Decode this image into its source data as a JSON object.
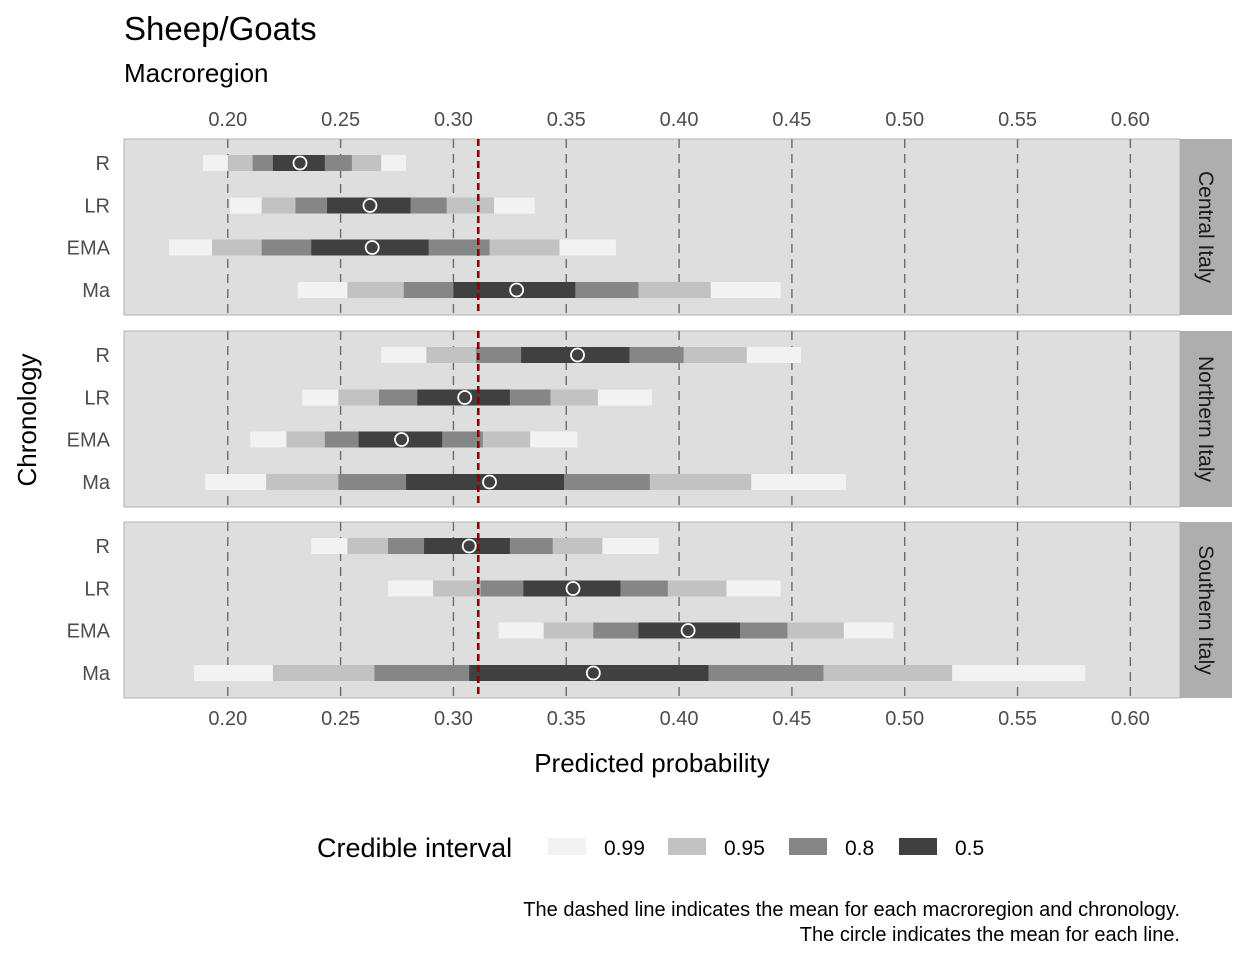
{
  "chart_data": {
    "type": "interval",
    "title": "Sheep/Goats",
    "subtitle": "Macroregion",
    "xlabel": "Predicted probability",
    "ylabel": "Chronology",
    "xlim": [
      0.154,
      0.622
    ],
    "x_ticks": [
      "0.20",
      "0.25",
      "0.30",
      "0.35",
      "0.40",
      "0.45",
      "0.50",
      "0.55",
      "0.60"
    ],
    "x_tick_values": [
      0.2,
      0.25,
      0.3,
      0.35,
      0.4,
      0.45,
      0.5,
      0.55,
      0.6
    ],
    "categories": [
      "R",
      "LR",
      "EMA",
      "Ma"
    ],
    "reference_line": 0.311,
    "legend": {
      "title": "Credible interval",
      "position": "bottom",
      "levels": [
        {
          "label": "0.99",
          "color": "#f2f2f2"
        },
        {
          "label": "0.95",
          "color": "#c2c2c2"
        },
        {
          "label": "0.8",
          "color": "#868686"
        },
        {
          "label": "0.5",
          "color": "#404040"
        }
      ]
    },
    "panels": [
      {
        "name": "Central Italy",
        "rows": [
          {
            "label": "R",
            "mean": 0.232,
            "i99": [
              0.189,
              0.279
            ],
            "i95": [
              0.2,
              0.268
            ],
            "i80": [
              0.211,
              0.255
            ],
            "i50": [
              0.22,
              0.243
            ]
          },
          {
            "label": "LR",
            "mean": 0.263,
            "i99": [
              0.201,
              0.336
            ],
            "i95": [
              0.215,
              0.318
            ],
            "i80": [
              0.23,
              0.297
            ],
            "i50": [
              0.244,
              0.281
            ]
          },
          {
            "label": "EMA",
            "mean": 0.264,
            "i99": [
              0.174,
              0.372
            ],
            "i95": [
              0.193,
              0.347
            ],
            "i80": [
              0.215,
              0.316
            ],
            "i50": [
              0.237,
              0.289
            ]
          },
          {
            "label": "Ma",
            "mean": 0.328,
            "i99": [
              0.231,
              0.445
            ],
            "i95": [
              0.253,
              0.414
            ],
            "i80": [
              0.278,
              0.382
            ],
            "i50": [
              0.3,
              0.354
            ]
          }
        ]
      },
      {
        "name": "Northern Italy",
        "rows": [
          {
            "label": "R",
            "mean": 0.355,
            "i99": [
              0.268,
              0.454
            ],
            "i95": [
              0.288,
              0.43
            ],
            "i80": [
              0.31,
              0.402
            ],
            "i50": [
              0.33,
              0.378
            ]
          },
          {
            "label": "LR",
            "mean": 0.305,
            "i99": [
              0.233,
              0.388
            ],
            "i95": [
              0.249,
              0.364
            ],
            "i80": [
              0.267,
              0.343
            ],
            "i50": [
              0.284,
              0.325
            ]
          },
          {
            "label": "EMA",
            "mean": 0.277,
            "i99": [
              0.21,
              0.355
            ],
            "i95": [
              0.226,
              0.334
            ],
            "i80": [
              0.243,
              0.313
            ],
            "i50": [
              0.258,
              0.295
            ]
          },
          {
            "label": "Ma",
            "mean": 0.316,
            "i99": [
              0.19,
              0.474
            ],
            "i95": [
              0.217,
              0.432
            ],
            "i80": [
              0.249,
              0.387
            ],
            "i50": [
              0.279,
              0.349
            ]
          }
        ]
      },
      {
        "name": "Southern Italy",
        "rows": [
          {
            "label": "R",
            "mean": 0.307,
            "i99": [
              0.237,
              0.391
            ],
            "i95": [
              0.253,
              0.366
            ],
            "i80": [
              0.271,
              0.344
            ],
            "i50": [
              0.287,
              0.325
            ]
          },
          {
            "label": "LR",
            "mean": 0.353,
            "i99": [
              0.271,
              0.445
            ],
            "i95": [
              0.291,
              0.421
            ],
            "i80": [
              0.312,
              0.395
            ],
            "i50": [
              0.331,
              0.374
            ]
          },
          {
            "label": "EMA",
            "mean": 0.404,
            "i99": [
              0.32,
              0.495
            ],
            "i95": [
              0.34,
              0.473
            ],
            "i80": [
              0.362,
              0.448
            ],
            "i50": [
              0.382,
              0.427
            ]
          },
          {
            "label": "Ma",
            "mean": 0.362,
            "i99": [
              0.185,
              0.58
            ],
            "i95": [
              0.22,
              0.521
            ],
            "i80": [
              0.265,
              0.464
            ],
            "i50": [
              0.307,
              0.413
            ]
          }
        ]
      }
    ]
  },
  "caption": {
    "line1": "The dashed line indicates the mean for each macroregion and chronology.",
    "line2": "The circle indicates the mean for each line."
  },
  "colors": {
    "panel_bg": "#dedede",
    "strip_bg": "#aeaeae",
    "grid": "#6b6b6b",
    "reference": "#8b0000",
    "point_fill": "#404040",
    "point_stroke": "#ffffff"
  }
}
